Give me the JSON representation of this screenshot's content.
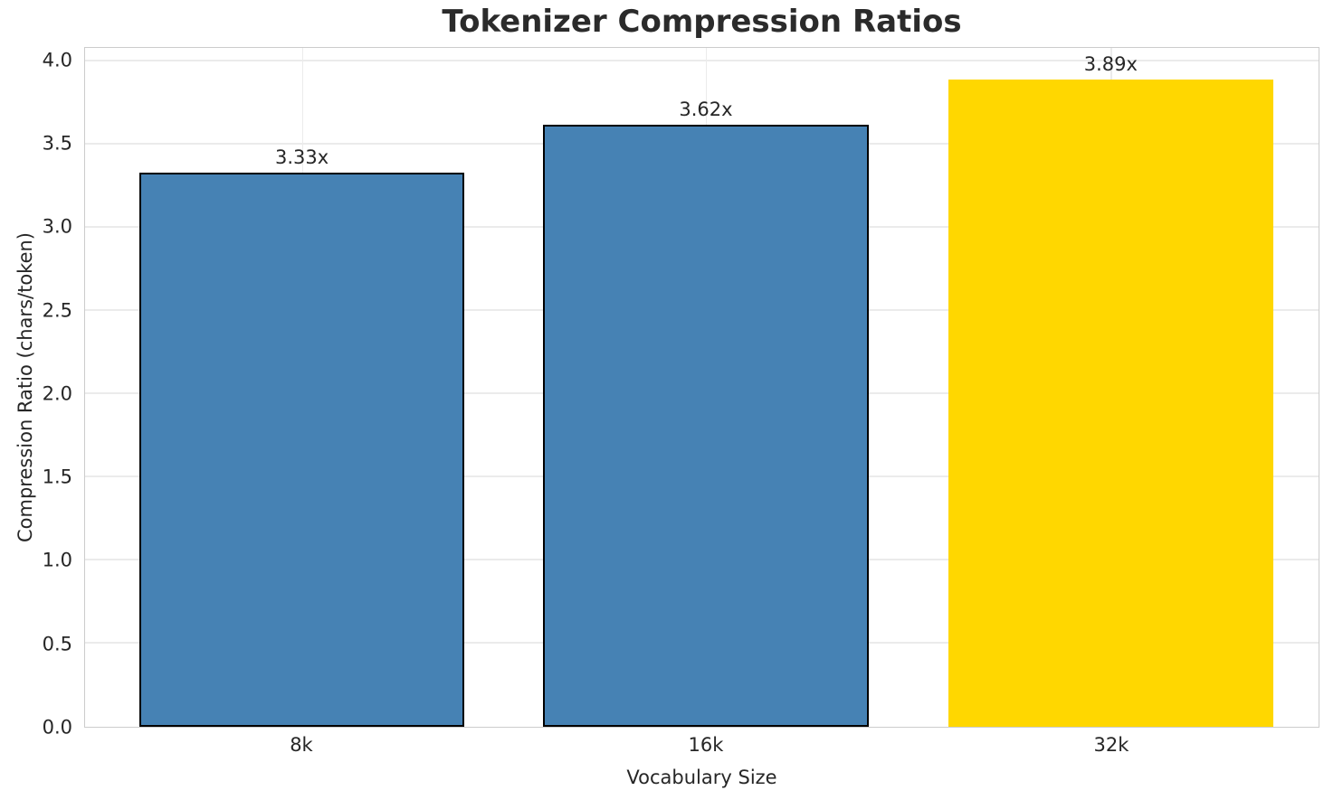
{
  "chart_data": {
    "type": "bar",
    "title": "Tokenizer Compression Ratios",
    "xlabel": "Vocabulary Size",
    "ylabel": "Compression Ratio (chars/token)",
    "categories": [
      "8k",
      "16k",
      "32k"
    ],
    "values": [
      3.33,
      3.62,
      3.89
    ],
    "bar_labels": [
      "3.33x",
      "3.62x",
      "3.89x"
    ],
    "ylim": [
      0,
      4.08
    ],
    "yticks": [
      0.0,
      0.5,
      1.0,
      1.5,
      2.0,
      2.5,
      3.0,
      3.5,
      4.0
    ],
    "ytick_labels": [
      "0.0",
      "0.5",
      "1.0",
      "1.5",
      "2.0",
      "2.5",
      "3.0",
      "3.5",
      "4.0"
    ],
    "grid": "both",
    "legend": "none",
    "colors": {
      "bar_fill": [
        "#4682B4",
        "#4682B4",
        "#FFD700"
      ],
      "bar_edge": [
        "#000000",
        "#000000",
        "#FFD700"
      ],
      "grid": "#ebebeb",
      "spine": "#cccccc",
      "text": "#262626",
      "background": "#ffffff"
    }
  }
}
